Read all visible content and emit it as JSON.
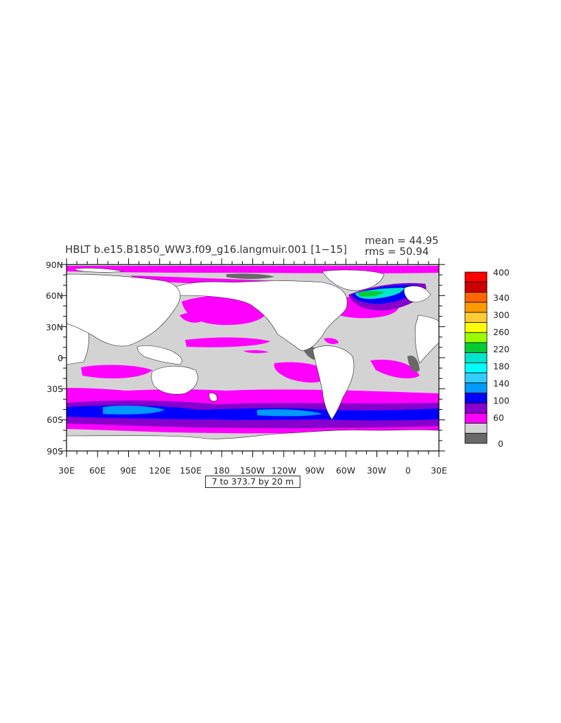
{
  "map": {
    "title": "HBLT b.e15.B1850_WW3.f09_g16.langmuir.001 [1−15]",
    "mean_label": "mean = 44.95",
    "rms_label": "rms = 50.94",
    "contour_info": "7 to 373.7 by 20 m",
    "lat_labels": [
      "90N",
      "60N",
      "30N",
      "0",
      "30S",
      "60S",
      "90S"
    ],
    "lon_labels": [
      "30E",
      "60E",
      "90E",
      "120E",
      "150E",
      "180",
      "150W",
      "120W",
      "90W",
      "60W",
      "30W",
      "0",
      "30E"
    ]
  },
  "colorbar": {
    "labels": [
      "400",
      "340",
      "300",
      "260",
      "220",
      "180",
      "140",
      "100",
      "60",
      "0"
    ],
    "colors": [
      "#ff0000",
      "#cc0000",
      "#ff6600",
      "#ff9900",
      "#ffcc33",
      "#ffff00",
      "#99ff00",
      "#00cc33",
      "#00e5cc",
      "#00ffff",
      "#33ccff",
      "#0099ff",
      "#0000ff",
      "#8800cc",
      "#ff00ff",
      "#d3d3d3",
      "#696969"
    ]
  },
  "colors": {
    "land": "#ffffff",
    "low": "#d3d3d3",
    "very_low": "#696969",
    "band_60": "#ff00ff",
    "band_80": "#8800cc",
    "band_100": "#0000ff",
    "band_120": "#0099ff"
  }
}
